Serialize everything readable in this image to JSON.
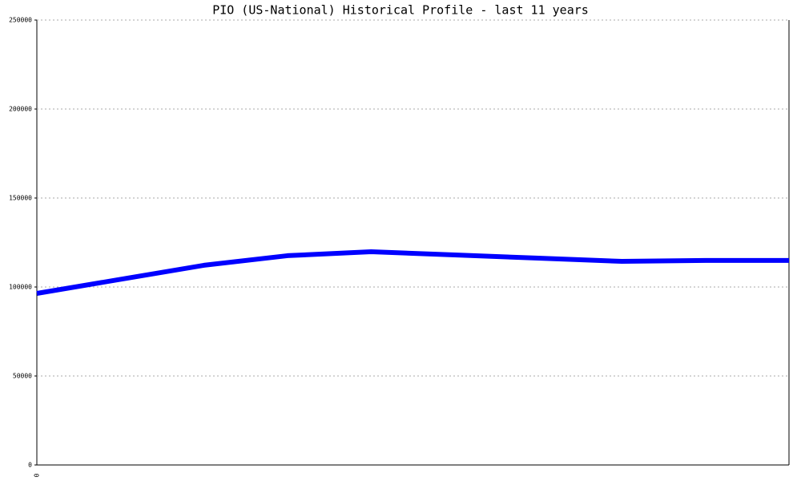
{
  "chart_data": {
    "type": "line",
    "title": "PIO (US-National) Historical Profile - last 11 years",
    "categories": [
      "0",
      null,
      null,
      null,
      null,
      null,
      null,
      null,
      null,
      null
    ],
    "series": [
      {
        "color": "#0000ff",
        "values": [
          96400,
          104300,
          112200,
          117600,
          119800,
          118000,
          116200,
          114400,
          114900,
          114900
        ]
      }
    ],
    "ylim": [
      0,
      250000
    ],
    "yticks": [
      0,
      50000,
      100000,
      150000,
      200000,
      250000
    ],
    "grid": true
  }
}
